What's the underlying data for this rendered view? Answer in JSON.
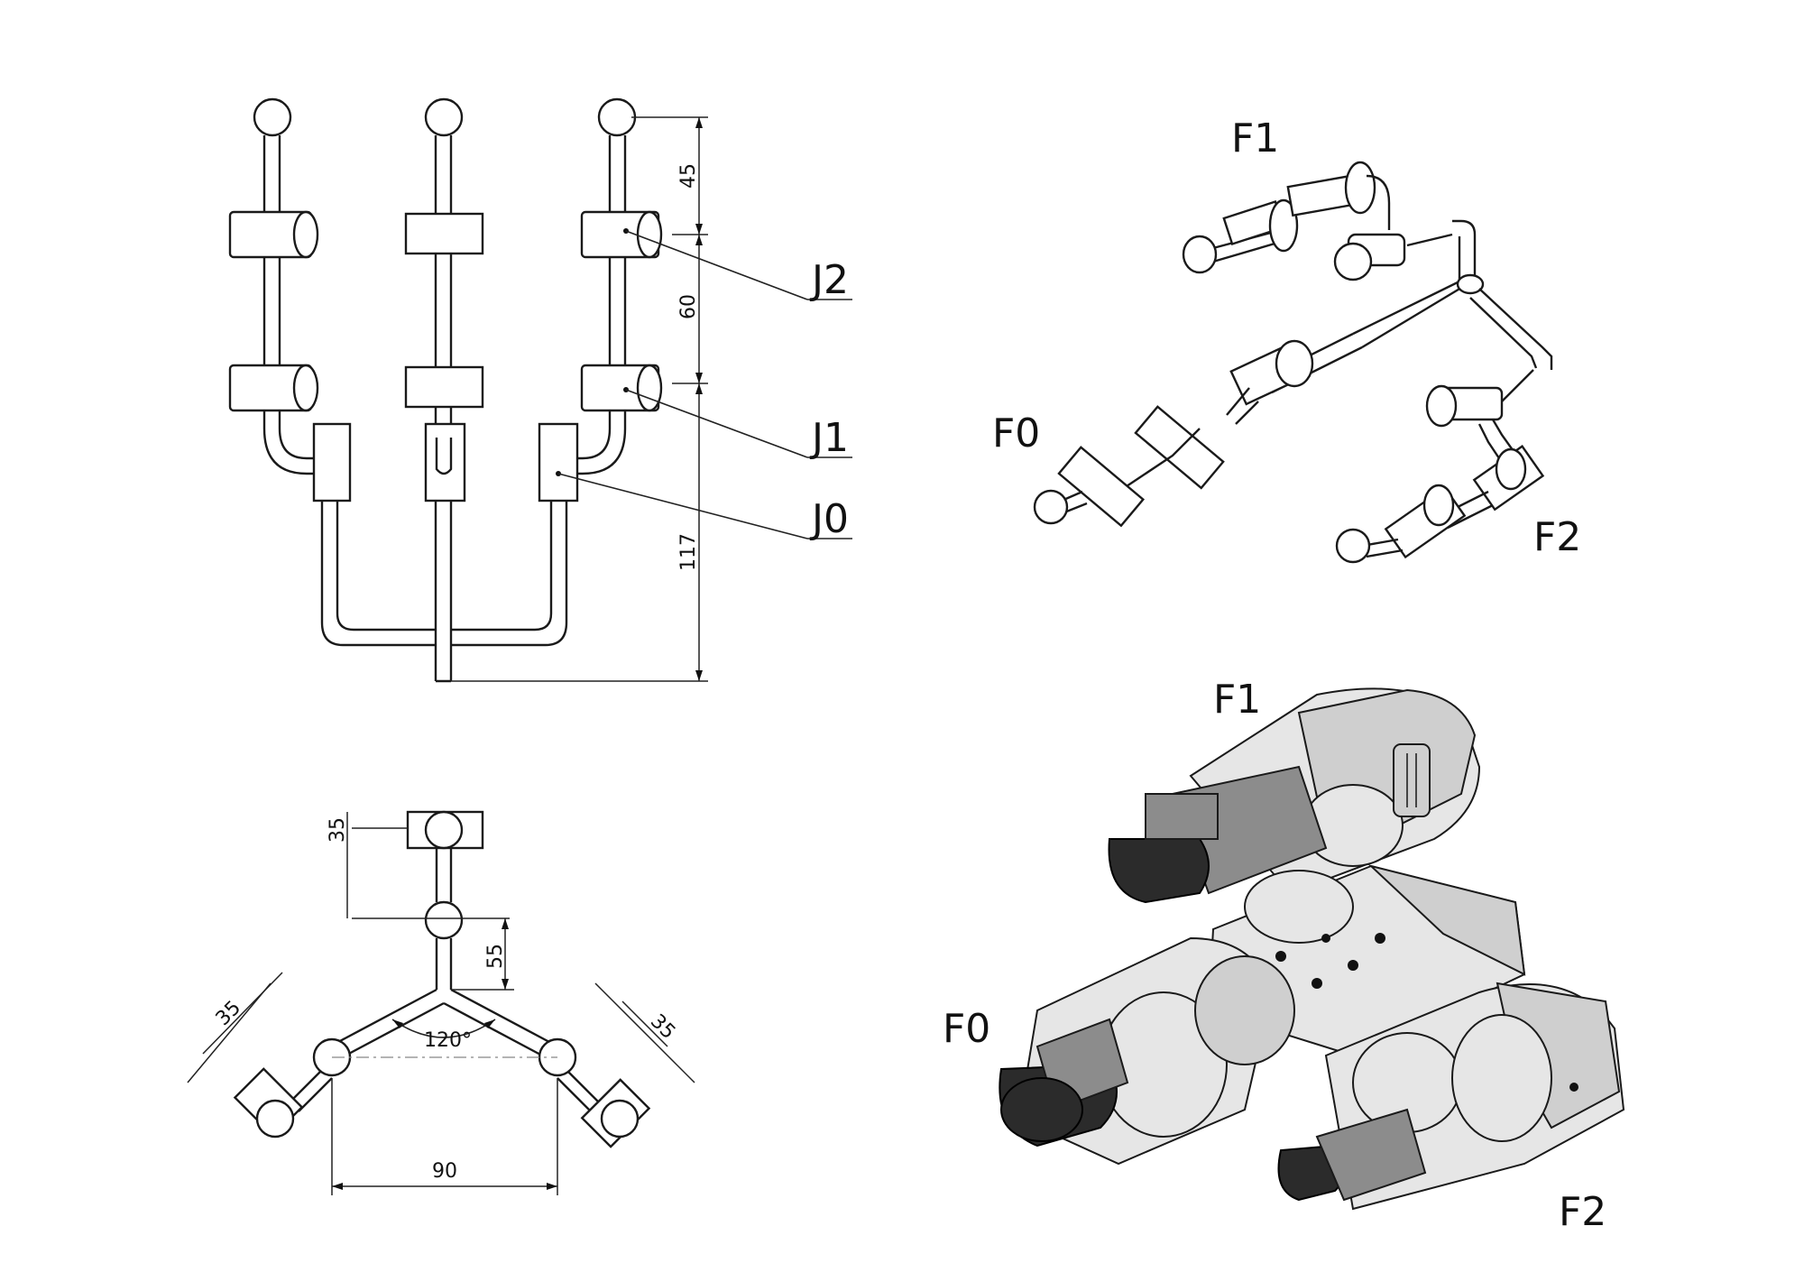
{
  "front_view": {
    "joint_labels": [
      "J2",
      "J1",
      "J0"
    ],
    "dims": [
      "45",
      "60",
      "117"
    ]
  },
  "top_view": {
    "dims": [
      "35",
      "55",
      "35",
      "35",
      "120°",
      "90"
    ]
  },
  "skeleton_view": {
    "labels": [
      "F1",
      "F0",
      "F2"
    ]
  },
  "render_view": {
    "labels": [
      "F1",
      "F0",
      "F2"
    ]
  }
}
